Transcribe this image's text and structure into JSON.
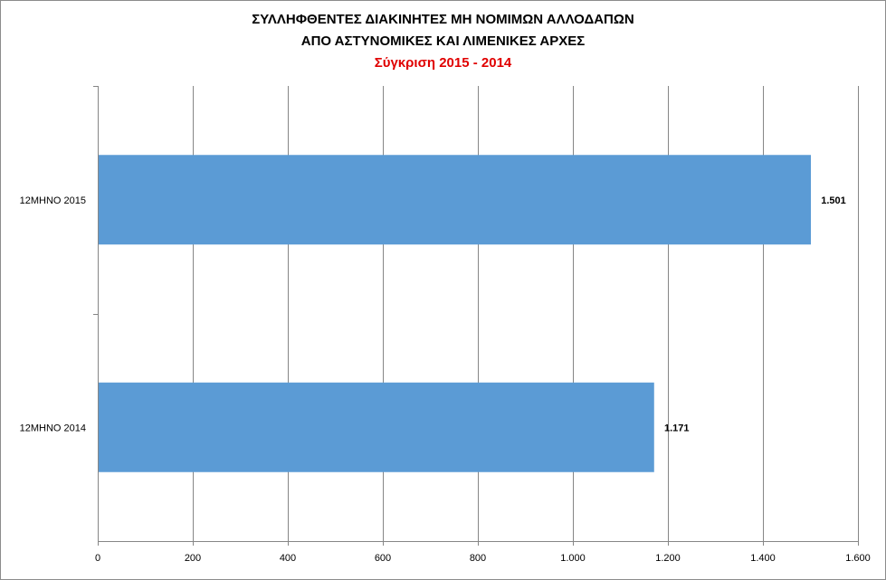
{
  "chart_data": {
    "type": "bar",
    "orientation": "horizontal",
    "title_lines": [
      "ΣΥΛΛΗΦΘΕΝΤΕΣ ΔΙΑΚΙΝΗΤΕΣ ΜΗ ΝΟΜΙΜΩΝ ΑΛΛΟΔΑΠΩΝ",
      "ΑΠΟ ΑΣΤΥΝΟΜΙΚΕΣ ΚΑΙ ΛΙΜΕΝΙΚΕΣ ΑΡΧΕΣ"
    ],
    "subtitle": "Σύγκριση 2015 - 2014",
    "categories": [
      "12ΜΗΝΟ 2015",
      "12ΜΗΝΟ 2014"
    ],
    "values": [
      1501,
      1171
    ],
    "data_labels": [
      "1.501",
      "1.171"
    ],
    "xlim": [
      0,
      1600
    ],
    "x_ticks": [
      0,
      200,
      400,
      600,
      800,
      1000,
      1200,
      1400,
      1600
    ],
    "x_tick_labels": [
      "0",
      "200",
      "400",
      "600",
      "800",
      "1.000",
      "1.200",
      "1.400",
      "1.600"
    ],
    "grid": true,
    "legend": "none",
    "colors": {
      "bar": "#5b9bd5",
      "grid": "#868686",
      "subtitle": "#e00000"
    }
  }
}
